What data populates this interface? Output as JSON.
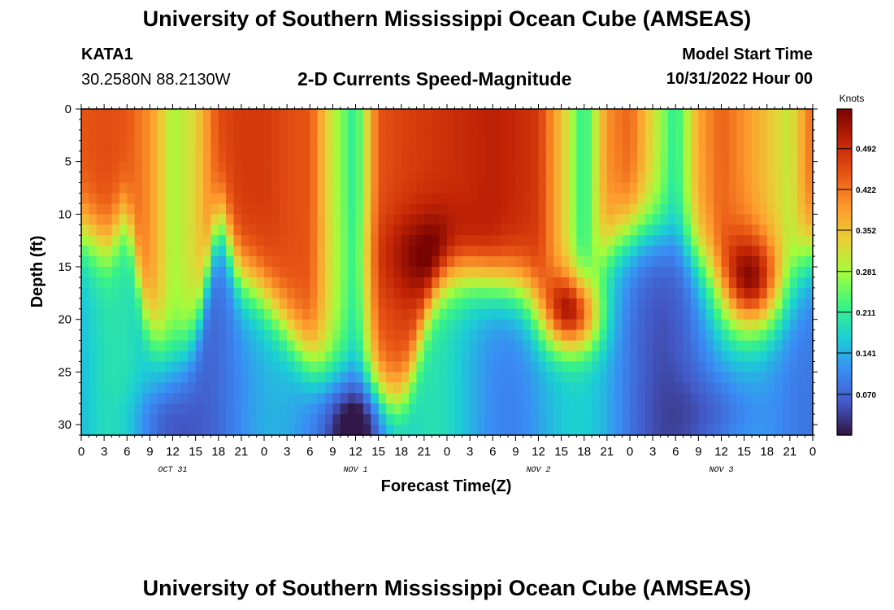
{
  "header": {
    "title": "University of Southern Mississippi Ocean Cube (AMSEAS)",
    "station_id": "KATA1",
    "coordinates": "30.2580N  88.2130W",
    "subtitle": "2-D Currents Speed-Magnitude",
    "model_start_label": "Model Start Time",
    "model_start_value": "10/31/2022 Hour 00"
  },
  "footer": {
    "title": "University of Southern Mississippi Ocean Cube (AMSEAS)"
  },
  "chart_data": {
    "type": "heatmap",
    "title": "2-D Currents Speed-Magnitude",
    "xlabel": "Forecast Time(Z)",
    "ylabel": "Depth (ft)",
    "xlim": [
      0,
      96
    ],
    "ylim": [
      31,
      0
    ],
    "x_tick_labels": [
      "0",
      "3",
      "6",
      "9",
      "12",
      "15",
      "18",
      "21",
      "0",
      "3",
      "6",
      "9",
      "12",
      "15",
      "18",
      "21",
      "0",
      "3",
      "6",
      "9",
      "12",
      "15",
      "18",
      "21",
      "0",
      "3",
      "6",
      "9",
      "12",
      "15",
      "18",
      "21",
      "0"
    ],
    "y_tick_labels": [
      "0",
      "5",
      "10",
      "15",
      "20",
      "25",
      "30"
    ],
    "y_ticks": [
      0,
      5,
      10,
      15,
      20,
      25,
      30
    ],
    "day_labels": [
      "OCT 31",
      "NOV 1",
      "NOV 2",
      "NOV 3"
    ],
    "colorbar": {
      "unit": "Knots",
      "range": [
        0,
        0.56
      ],
      "tick_labels": [
        "0.492",
        "0.422",
        "0.352",
        "0.281",
        "0.211",
        "0.141",
        "0.070"
      ],
      "ticks": [
        0.492,
        0.422,
        0.352,
        0.281,
        0.211,
        0.141,
        0.07
      ]
    },
    "depths_ft": [
      0,
      5,
      10,
      15,
      20,
      25,
      30
    ],
    "surface_speed_knots": [
      0.45,
      0.46,
      0.45,
      0.4,
      0.28,
      0.33,
      0.46,
      0.48,
      0.48,
      0.46,
      0.45,
      0.3,
      0.2,
      0.45,
      0.47,
      0.48,
      0.49,
      0.5,
      0.51,
      0.5,
      0.48,
      0.35,
      0.2,
      0.4,
      0.44,
      0.32,
      0.2,
      0.38,
      0.44,
      0.4,
      0.35,
      0.3,
      0.44
    ],
    "notes": "Speed magnitude by forecast hour (every 3h, 0-96) and depth (0-31 ft)."
  }
}
